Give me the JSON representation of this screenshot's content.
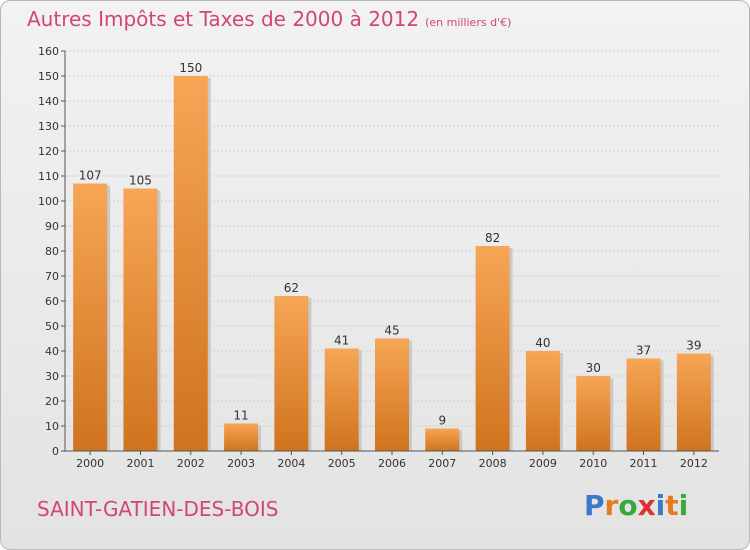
{
  "title": "Autres Impôts et Taxes de 2000 à 2012",
  "title_unit": "(en milliers d'€)",
  "place": "SAINT-GATIEN-DES-BOIS",
  "logo": {
    "text": "Proxiti",
    "letters": [
      {
        "ch": "P",
        "color": "#3a78c8"
      },
      {
        "ch": "r",
        "color": "#e87a1e"
      },
      {
        "ch": "o",
        "color": "#3aa83a"
      },
      {
        "ch": "x",
        "color": "#e0312f"
      },
      {
        "ch": "i",
        "color": "#3a78c8"
      },
      {
        "ch": "t",
        "color": "#e87a1e"
      },
      {
        "ch": "i",
        "color": "#3aa83a"
      }
    ]
  },
  "chart_data": {
    "type": "bar",
    "categories": [
      "2000",
      "2001",
      "2002",
      "2003",
      "2004",
      "2005",
      "2006",
      "2007",
      "2008",
      "2009",
      "2010",
      "2011",
      "2012"
    ],
    "values": [
      107,
      105,
      150,
      11,
      62,
      41,
      45,
      9,
      82,
      40,
      30,
      37,
      39
    ],
    "ylim": [
      0,
      160
    ],
    "yticks": [
      0,
      10,
      20,
      30,
      40,
      50,
      60,
      70,
      80,
      90,
      100,
      110,
      120,
      130,
      140,
      150,
      160
    ],
    "grid": true,
    "bar_color_top": "#f6a656",
    "bar_color_bottom": "#d0731e"
  }
}
